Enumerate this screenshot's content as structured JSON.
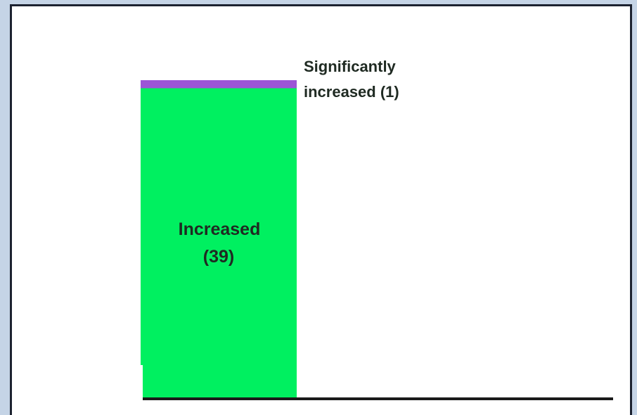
{
  "chart_data": {
    "type": "bar",
    "stacked": true,
    "categories": [
      ""
    ],
    "series": [
      {
        "name": "Increased",
        "values": [
          39
        ],
        "color": "#00f060",
        "label": "Increased (39)"
      },
      {
        "name": "Significantly increased",
        "values": [
          1
        ],
        "color": "#9c55d6",
        "label": "Significantly increased (1)"
      }
    ],
    "total": 40,
    "annotations": {
      "increased_line1": "Increased",
      "increased_line2": "(39)",
      "significant_line1": "Significantly",
      "significant_line2": "increased (1)"
    },
    "title": "",
    "xlabel": "",
    "ylabel": "",
    "grid": false,
    "legend": "none"
  }
}
